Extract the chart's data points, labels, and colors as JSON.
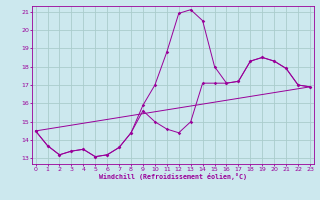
{
  "xlabel": "Windchill (Refroidissement éolien,°C)",
  "bg_color": "#cce8ee",
  "grid_color": "#aacccc",
  "line_color": "#990099",
  "x_min": 0,
  "x_max": 23,
  "y_min": 13,
  "y_max": 21,
  "series1": [
    [
      0,
      14.5
    ],
    [
      1,
      13.7
    ],
    [
      2,
      13.2
    ],
    [
      3,
      13.4
    ],
    [
      4,
      13.5
    ],
    [
      5,
      13.1
    ],
    [
      6,
      13.2
    ],
    [
      7,
      13.6
    ],
    [
      8,
      14.4
    ],
    [
      9,
      15.9
    ],
    [
      10,
      17.0
    ],
    [
      11,
      18.8
    ],
    [
      12,
      20.9
    ],
    [
      13,
      21.1
    ],
    [
      14,
      20.5
    ],
    [
      15,
      18.0
    ],
    [
      16,
      17.1
    ],
    [
      17,
      17.2
    ],
    [
      18,
      18.3
    ],
    [
      19,
      18.5
    ],
    [
      20,
      18.3
    ],
    [
      21,
      17.9
    ],
    [
      22,
      17.0
    ],
    [
      23,
      16.9
    ]
  ],
  "series2": [
    [
      0,
      14.5
    ],
    [
      1,
      13.7
    ],
    [
      2,
      13.2
    ],
    [
      3,
      13.4
    ],
    [
      4,
      13.5
    ],
    [
      5,
      13.1
    ],
    [
      6,
      13.2
    ],
    [
      7,
      13.6
    ],
    [
      8,
      14.4
    ],
    [
      9,
      15.6
    ],
    [
      10,
      15.0
    ],
    [
      11,
      14.6
    ],
    [
      12,
      14.4
    ],
    [
      13,
      15.0
    ],
    [
      14,
      17.1
    ],
    [
      15,
      17.1
    ],
    [
      16,
      17.1
    ],
    [
      17,
      17.2
    ],
    [
      18,
      18.3
    ],
    [
      19,
      18.5
    ],
    [
      20,
      18.3
    ],
    [
      21,
      17.9
    ],
    [
      22,
      17.0
    ],
    [
      23,
      16.9
    ]
  ],
  "series3_x": [
    0,
    23
  ],
  "series3_y": [
    14.5,
    16.9
  ]
}
